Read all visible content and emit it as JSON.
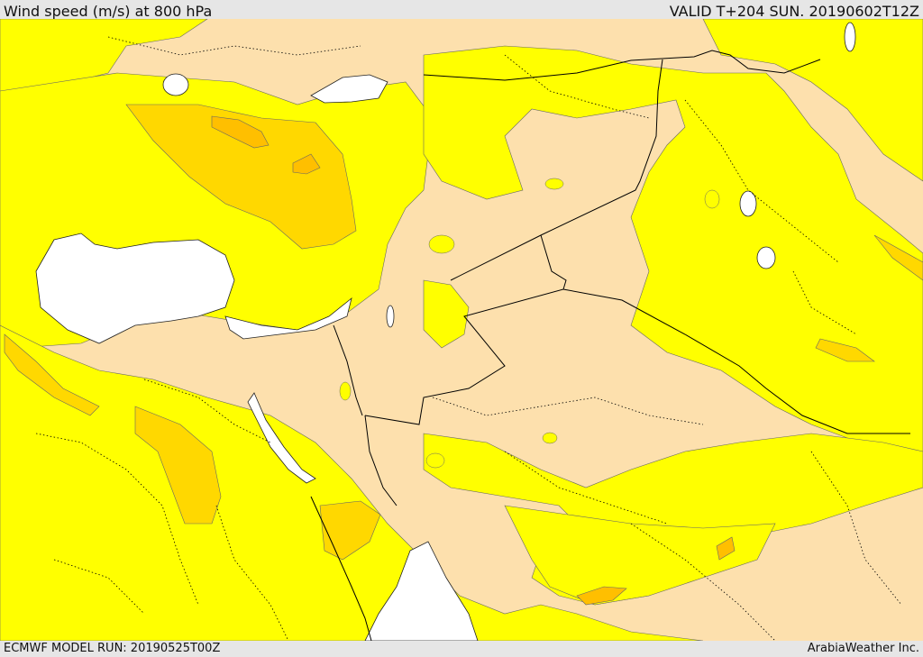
{
  "header": {
    "title": "Wind speed (m/s) at 800 hPa",
    "valid": "VALID T+204 SUN. 20190602T12Z"
  },
  "footer": {
    "model_run": "ECMWF MODEL RUN: 20190525T00Z",
    "credit": "ArabiaWeather Inc."
  },
  "colors": {
    "land_base": "#fde0ad",
    "band_yellow": "#ffff00",
    "band_gold": "#ffd800",
    "band_orange": "#ffbf00",
    "water": "#ffffff",
    "border": "#000000"
  }
}
